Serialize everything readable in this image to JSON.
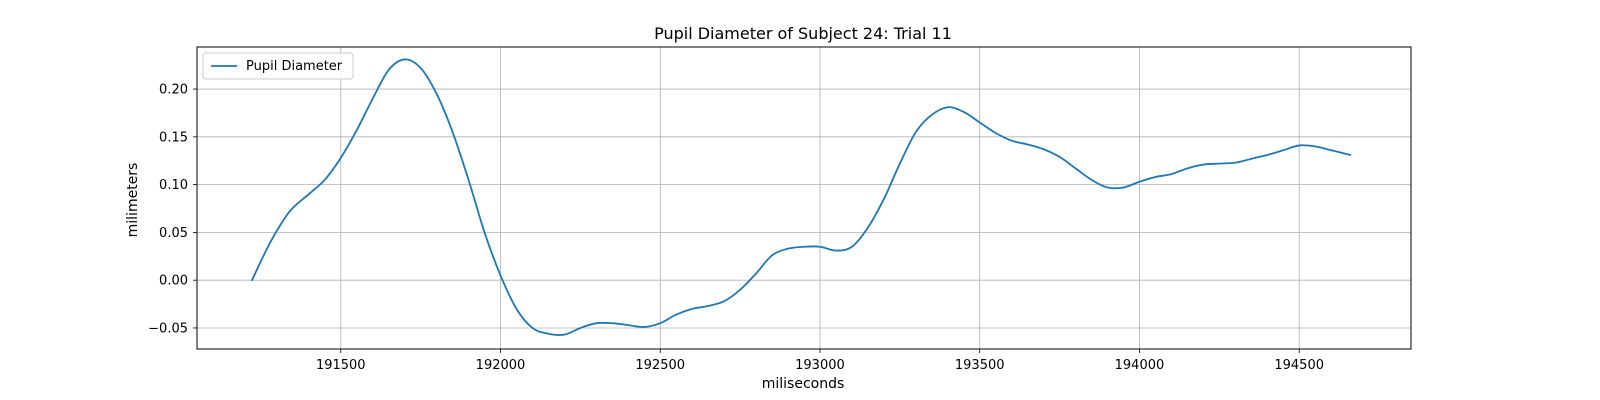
{
  "chart_data": {
    "type": "line",
    "title": "Pupil Diameter of Subject 24: Trial 11",
    "xlabel": "miliseconds",
    "ylabel": "milimeters",
    "xlim": [
      191050,
      194850
    ],
    "ylim": [
      -0.072,
      0.244
    ],
    "xticks": [
      191500,
      192000,
      192500,
      193000,
      193500,
      194000,
      194500
    ],
    "xtick_labels": [
      "191500",
      "192000",
      "192500",
      "193000",
      "193500",
      "194000",
      "194500"
    ],
    "yticks": [
      -0.05,
      0.0,
      0.05,
      0.1,
      0.15,
      0.2
    ],
    "ytick_labels": [
      "−0.05",
      "0.00",
      "0.05",
      "0.10",
      "0.15",
      "0.20"
    ],
    "grid": true,
    "legend_position": "top-left",
    "series": [
      {
        "name": "Pupil Diameter",
        "color": "#1f77b4",
        "x": [
          191222,
          191280,
          191340,
          191400,
          191450,
          191500,
          191550,
          191600,
          191650,
          191700,
          191750,
          191800,
          191850,
          191900,
          191950,
          192000,
          192050,
          192100,
          192150,
          192200,
          192250,
          192300,
          192350,
          192400,
          192450,
          192500,
          192550,
          192600,
          192650,
          192700,
          192750,
          192800,
          192850,
          192900,
          192950,
          193000,
          193050,
          193100,
          193150,
          193200,
          193250,
          193300,
          193350,
          193400,
          193450,
          193500,
          193550,
          193600,
          193650,
          193700,
          193750,
          193800,
          193850,
          193900,
          193950,
          194000,
          194050,
          194100,
          194150,
          194200,
          194250,
          194300,
          194350,
          194400,
          194450,
          194500,
          194550,
          194600,
          194660
        ],
        "y": [
          0.0,
          0.04,
          0.072,
          0.09,
          0.105,
          0.128,
          0.157,
          0.19,
          0.22,
          0.231,
          0.222,
          0.195,
          0.155,
          0.105,
          0.05,
          0.005,
          -0.03,
          -0.05,
          -0.056,
          -0.057,
          -0.05,
          -0.045,
          -0.045,
          -0.047,
          -0.049,
          -0.045,
          -0.036,
          -0.03,
          -0.027,
          -0.022,
          -0.01,
          0.007,
          0.026,
          0.033,
          0.035,
          0.035,
          0.031,
          0.035,
          0.055,
          0.085,
          0.122,
          0.155,
          0.173,
          0.181,
          0.176,
          0.165,
          0.154,
          0.146,
          0.142,
          0.137,
          0.129,
          0.117,
          0.105,
          0.097,
          0.097,
          0.103,
          0.108,
          0.111,
          0.117,
          0.121,
          0.122,
          0.123,
          0.127,
          0.131,
          0.136,
          0.141,
          0.14,
          0.136,
          0.131
        ]
      }
    ]
  }
}
